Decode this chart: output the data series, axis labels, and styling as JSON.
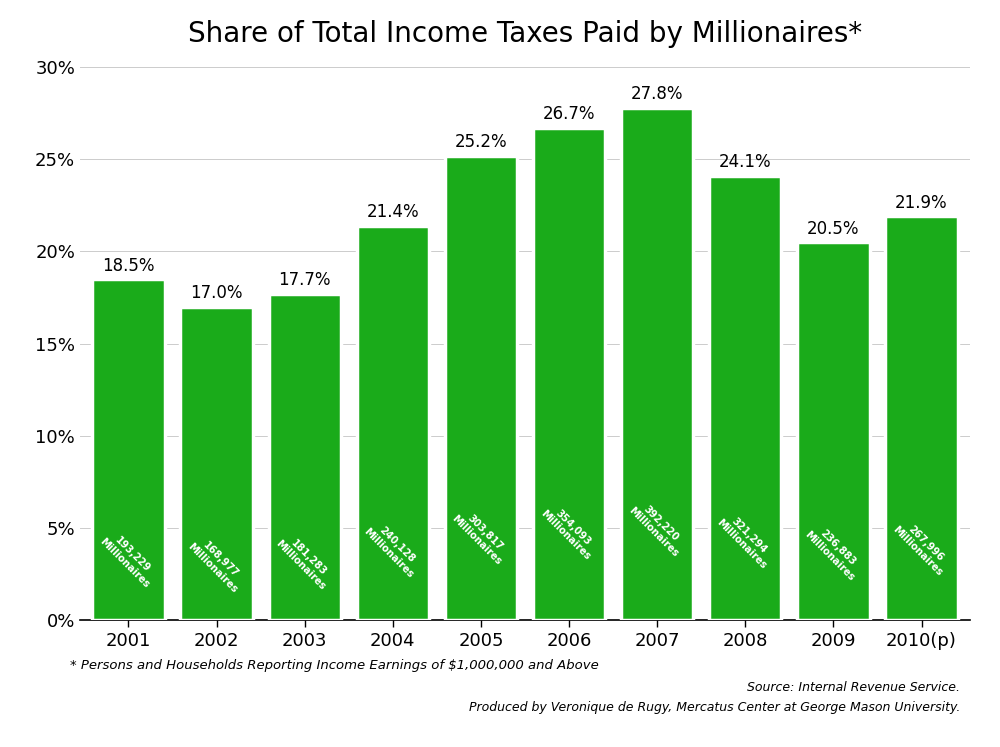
{
  "title": "Share of Total Income Taxes Paid by Millionaires*",
  "years": [
    "2001",
    "2002",
    "2003",
    "2004",
    "2005",
    "2006",
    "2007",
    "2008",
    "2009",
    "2010(p)"
  ],
  "values": [
    18.5,
    17.0,
    17.7,
    21.4,
    25.2,
    26.7,
    27.8,
    24.1,
    20.5,
    21.9
  ],
  "millionaires": [
    "193,229",
    "168,977",
    "181,283",
    "240,128",
    "303,817",
    "354,093",
    "392,220",
    "321,294",
    "236,883",
    "267,996"
  ],
  "bar_color": "#1aab1a",
  "bar_edge_color": "#ffffff",
  "ylabel_ticks": [
    "0%",
    "5%",
    "10%",
    "15%",
    "20%",
    "25%",
    "30%"
  ],
  "ytick_values": [
    0,
    5,
    10,
    15,
    20,
    25,
    30
  ],
  "ylim": [
    0,
    30
  ],
  "footnote": "* Persons and Households Reporting Income Earnings of $1,000,000 and Above",
  "source_line1": "Source: Internal Revenue Service.",
  "source_line2": "Produced by Veronique de Rugy, Mercatus Center at George Mason University.",
  "title_fontsize": 20,
  "tick_fontsize": 13,
  "label_fontsize": 12,
  "bg_color": "#ffffff"
}
